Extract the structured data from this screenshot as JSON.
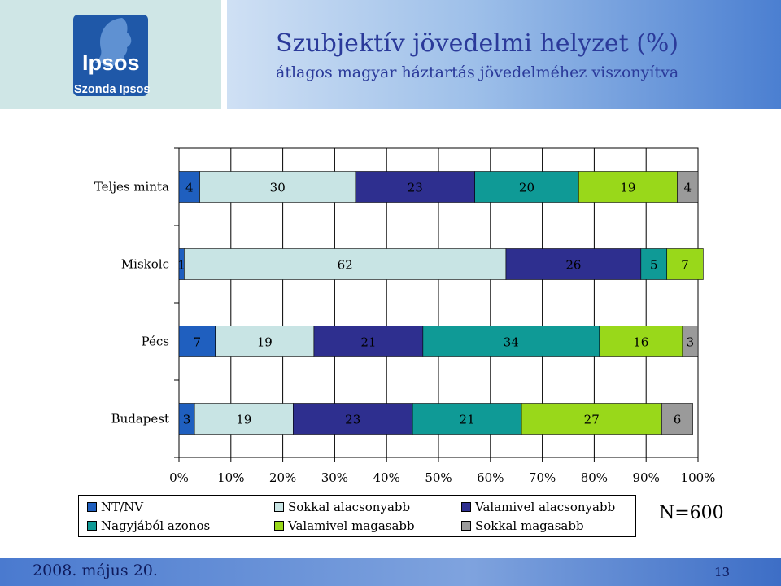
{
  "logo": {
    "brand": "Ipsos",
    "sub": "Szonda Ipsos"
  },
  "title": "Szubjektív jövedelmi helyzet (%)",
  "subtitle": "átlagos magyar háztartás jövedelméhez viszonyítva",
  "chart_data": {
    "type": "bar",
    "orientation": "horizontal-stacked-100",
    "categories": [
      "Teljes minta",
      "Miskolc",
      "Pécs",
      "Budapest"
    ],
    "series": [
      {
        "name": "NT/NV",
        "color": "#1f5fbf",
        "values": [
          4,
          1,
          7,
          3
        ]
      },
      {
        "name": "Sokkal alacsonyabb",
        "color": "#c8e4e4",
        "values": [
          30,
          62,
          19,
          19
        ]
      },
      {
        "name": "Valamivel alacsonyabb",
        "color": "#2e2f8f",
        "values": [
          23,
          26,
          21,
          23
        ]
      },
      {
        "name": "Nagyjából azonos",
        "color": "#0f9a96",
        "values": [
          20,
          5,
          34,
          21
        ]
      },
      {
        "name": "Valamivel magasabb",
        "color": "#99d81a",
        "values": [
          19,
          7,
          16,
          27
        ]
      },
      {
        "name": "Sokkal magasabb",
        "color": "#9a9a9a",
        "values": [
          4,
          0,
          3,
          6
        ]
      }
    ],
    "xticks": [
      "0%",
      "10%",
      "20%",
      "30%",
      "40%",
      "50%",
      "60%",
      "70%",
      "80%",
      "90%",
      "100%"
    ],
    "xlim": [
      0,
      100
    ],
    "grid": true,
    "legend_position": "bottom"
  },
  "sample_size": "N=600",
  "footer": {
    "date": "2008. május 20.",
    "page": "13"
  }
}
